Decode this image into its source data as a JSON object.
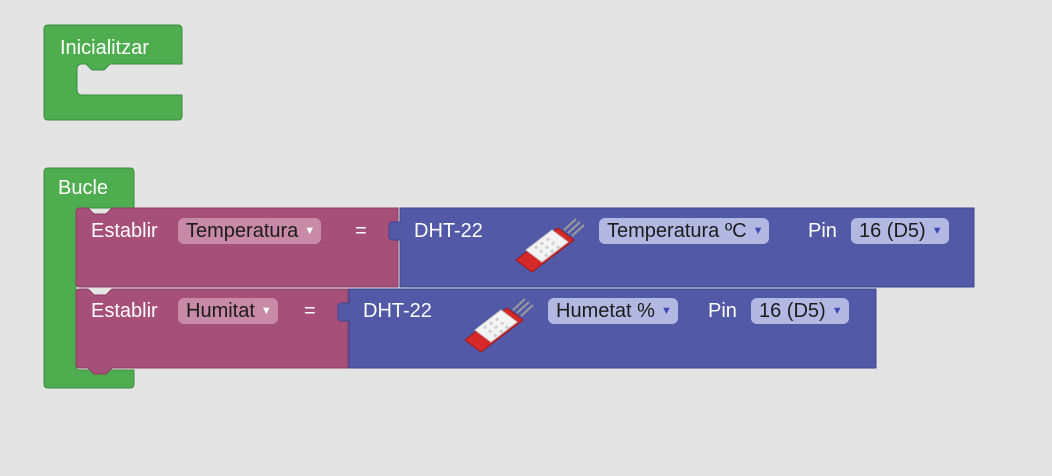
{
  "blocks": {
    "init": {
      "label": "Inicialitzar"
    },
    "loop": {
      "label": "Bucle",
      "statements": [
        {
          "set_label": "Establir",
          "variable": "Temperatura",
          "equals": "=",
          "sensor": {
            "name": "DHT-22",
            "measure": "Temperatura ºC",
            "pin_label": "Pin",
            "pin": "16 (D5)"
          }
        },
        {
          "set_label": "Establir",
          "variable": "Humitat",
          "equals": "=",
          "sensor": {
            "name": "DHT-22",
            "measure": "Humetat %",
            "pin_label": "Pin",
            "pin": "16 (D5)"
          }
        }
      ]
    }
  },
  "icons": {
    "dropdown": "triangle-down-icon",
    "sensor": "dht22-sensor-icon"
  },
  "colors": {
    "control": "#4ead4f",
    "variable": "#a64f78",
    "sensor": "#525aa8"
  }
}
